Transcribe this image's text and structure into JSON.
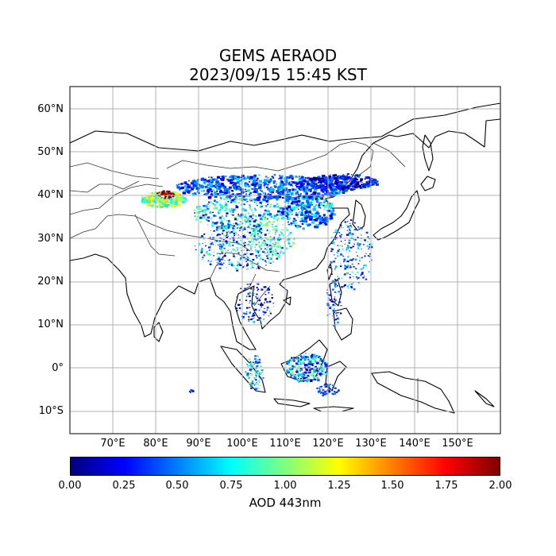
{
  "title": "GEMS AERAOD",
  "subtitle": "2023/09/15 15:45 KST",
  "colorbar": {
    "label": "AOD 443nm",
    "ticks": [
      "0.00",
      "0.25",
      "0.50",
      "0.75",
      "1.00",
      "1.25",
      "1.50",
      "1.75",
      "2.00"
    ],
    "range": [
      0,
      2
    ],
    "colormap": "jet"
  },
  "map": {
    "lon_range": [
      60,
      160
    ],
    "lat_range": [
      -15,
      65
    ],
    "gridlines": true,
    "lat_labels": [
      "60°N",
      "50°N",
      "40°N",
      "30°N",
      "20°N",
      "10°N",
      "0°",
      "10°S"
    ],
    "lon_labels": [
      "70°E",
      "80°E",
      "90°E",
      "100°E",
      "110°E",
      "120°E",
      "130°E",
      "140°E",
      "150°E"
    ]
  },
  "colors": {
    "coastline": "#000000",
    "borders": "#333333",
    "grid": "#b0b0b0"
  }
}
